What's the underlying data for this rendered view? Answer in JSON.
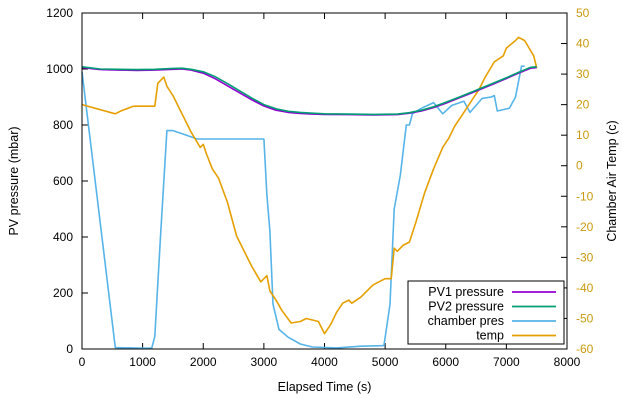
{
  "chart_data": {
    "type": "line",
    "xlabel": "Elapsed Time (s)",
    "ylabel": "PV pressure (mbar)",
    "y2label": "Chamber Air Temp (c)",
    "xlim": [
      0,
      8000
    ],
    "ylim": [
      0,
      1200
    ],
    "y2lim": [
      -60,
      50
    ],
    "x_ticks": [
      0,
      1000,
      2000,
      3000,
      4000,
      5000,
      6000,
      7000,
      8000
    ],
    "y_ticks": [
      0,
      200,
      400,
      600,
      800,
      1000,
      1200
    ],
    "y2_ticks": [
      -60,
      -50,
      -40,
      -30,
      -20,
      -10,
      0,
      10,
      20,
      30,
      40,
      50
    ],
    "grid": false,
    "legend_position": "bottom-right",
    "series": [
      {
        "name": "PV1 pressure",
        "axis": "y1",
        "color": "#9400d3",
        "x": [
          0,
          300,
          600,
          900,
          1200,
          1500,
          1650,
          1800,
          2000,
          2200,
          2400,
          2600,
          2800,
          3000,
          3200,
          3400,
          3600,
          3800,
          4000,
          4400,
          4800,
          5200,
          5400,
          5600,
          5800,
          6000,
          6200,
          6400,
          6600,
          6800,
          7000,
          7200,
          7400,
          7500
        ],
        "y": [
          1005,
          998,
          996,
          995,
          996,
          999,
          1000,
          996,
          985,
          965,
          940,
          915,
          890,
          868,
          853,
          845,
          841,
          839,
          838,
          837,
          836,
          837,
          842,
          850,
          862,
          878,
          895,
          912,
          930,
          948,
          966,
          985,
          1003,
          1005
        ]
      },
      {
        "name": "PV2 pressure",
        "axis": "y1",
        "color": "#009e73",
        "x": [
          0,
          300,
          600,
          900,
          1200,
          1500,
          1650,
          1800,
          2000,
          2200,
          2400,
          2600,
          2800,
          3000,
          3200,
          3400,
          3600,
          3800,
          4000,
          4400,
          4800,
          5200,
          5400,
          5600,
          5800,
          6000,
          6200,
          6400,
          6600,
          6800,
          7000,
          7200,
          7400,
          7500
        ],
        "y": [
          1008,
          1000,
          999,
          998,
          999,
          1002,
          1003,
          999,
          990,
          972,
          948,
          922,
          896,
          873,
          858,
          849,
          845,
          842,
          840,
          839,
          838,
          839,
          844,
          853,
          865,
          881,
          898,
          915,
          933,
          951,
          969,
          988,
          1006,
          1008
        ]
      },
      {
        "name": "chamber pres",
        "axis": "y1",
        "color": "#56b4e9",
        "x": [
          0,
          550,
          1000,
          1150,
          1200,
          1300,
          1400,
          1500,
          1700,
          1900,
          2200,
          2600,
          3000,
          3050,
          3100,
          3150,
          3250,
          3400,
          3600,
          3800,
          4200,
          4600,
          4980,
          5000,
          5080,
          5150,
          5250,
          5350,
          5400,
          5450,
          5600,
          5800,
          5950,
          6100,
          6300,
          6400,
          6600,
          6750,
          6800,
          6850,
          7050,
          7150,
          7250,
          7300
        ],
        "y": [
          990,
          5,
          3,
          3,
          45,
          420,
          780,
          780,
          765,
          750,
          750,
          750,
          750,
          550,
          420,
          160,
          70,
          42,
          18,
          7,
          4,
          10,
          12,
          40,
          160,
          500,
          620,
          800,
          800,
          840,
          860,
          880,
          840,
          870,
          885,
          845,
          895,
          900,
          905,
          850,
          860,
          900,
          1010,
          1010
        ]
      },
      {
        "name": "temp",
        "axis": "y2",
        "color": "#e69f00",
        "x": [
          0,
          550,
          650,
          850,
          1050,
          1200,
          1250,
          1350,
          1400,
          1500,
          1650,
          1800,
          1950,
          2000,
          2050,
          2150,
          2250,
          2400,
          2550,
          2650,
          2800,
          2950,
          3050,
          3100,
          3200,
          3300,
          3450,
          3600,
          3700,
          3800,
          3900,
          4000,
          4100,
          4200,
          4300,
          4400,
          4450,
          4600,
          4800,
          5000,
          5100,
          5150,
          5200,
          5300,
          5400,
          5500,
          5650,
          5800,
          5950,
          6050,
          6150,
          6250,
          6350,
          6450,
          6550,
          6650,
          6800,
          6950,
          7000,
          7150,
          7200,
          7300,
          7450,
          7500
        ],
        "y": [
          20,
          17,
          18,
          19.5,
          19.5,
          19.5,
          27,
          29,
          26,
          23,
          17,
          11,
          6,
          7,
          4,
          -1,
          -4,
          -12,
          -23,
          -27,
          -33,
          -38,
          -36,
          -41,
          -44,
          -47.5,
          -51.5,
          -51,
          -50,
          -50.5,
          -51,
          -55,
          -52,
          -48,
          -45,
          -44,
          -45,
          -43,
          -39,
          -37,
          -37,
          -27,
          -28,
          -26,
          -25,
          -19,
          -9,
          -1,
          6,
          9,
          13,
          16,
          19,
          22,
          25,
          29,
          34,
          36,
          38.5,
          41,
          42,
          41,
          36,
          32
        ]
      }
    ]
  }
}
